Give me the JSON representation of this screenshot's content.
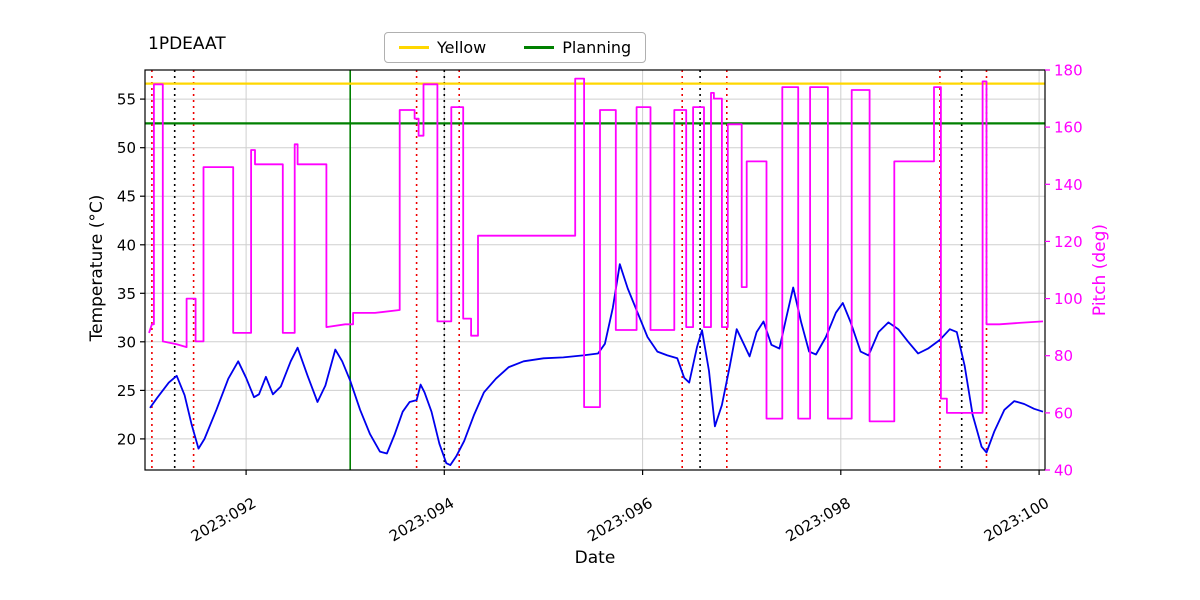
{
  "title": "1PDEAAT",
  "legend": {
    "items": [
      {
        "label": "Yellow",
        "color": "#ffd700"
      },
      {
        "label": "Planning",
        "color": "#008000"
      }
    ]
  },
  "axes": {
    "x_label": "Date",
    "y_left_label": "Temperature (°C)",
    "y_right_label": "Pitch (deg)",
    "x_range": [
      90.98,
      100.06
    ],
    "y_left_range": [
      16.8,
      58.0
    ],
    "y_right_range": [
      40,
      180
    ],
    "x_ticks": [
      {
        "value": 92,
        "label": "2023:092"
      },
      {
        "value": 94,
        "label": "2023:094"
      },
      {
        "value": 96,
        "label": "2023:096"
      },
      {
        "value": 98,
        "label": "2023:098"
      },
      {
        "value": 100,
        "label": "2023:100"
      }
    ],
    "y_left_ticks": [
      20,
      25,
      30,
      35,
      40,
      45,
      50,
      55
    ],
    "y_right_ticks": [
      40,
      60,
      80,
      100,
      120,
      140,
      160,
      180
    ],
    "grid": true
  },
  "chart_data": {
    "type": "line",
    "title": "1PDEAAT",
    "xlabel": "Date",
    "ylabel_left": "Temperature (°C)",
    "ylabel_right": "Pitch (deg)",
    "series": [
      {
        "name": "temperature",
        "color": "#0000ee",
        "axis": "left",
        "points": [
          [
            91.03,
            23.2
          ],
          [
            91.1,
            24.2
          ],
          [
            91.22,
            25.8
          ],
          [
            91.3,
            26.5
          ],
          [
            91.38,
            24.5
          ],
          [
            91.45,
            21.5
          ],
          [
            91.52,
            19.0
          ],
          [
            91.58,
            20.0
          ],
          [
            91.7,
            23.0
          ],
          [
            91.82,
            26.2
          ],
          [
            91.92,
            28.0
          ],
          [
            92.0,
            26.3
          ],
          [
            92.08,
            24.3
          ],
          [
            92.13,
            24.6
          ],
          [
            92.2,
            26.4
          ],
          [
            92.27,
            24.6
          ],
          [
            92.35,
            25.4
          ],
          [
            92.45,
            28.0
          ],
          [
            92.52,
            29.4
          ],
          [
            92.62,
            26.5
          ],
          [
            92.72,
            23.8
          ],
          [
            92.8,
            25.5
          ],
          [
            92.9,
            29.2
          ],
          [
            92.97,
            28.0
          ],
          [
            93.05,
            26.0
          ],
          [
            93.15,
            23.0
          ],
          [
            93.25,
            20.5
          ],
          [
            93.35,
            18.7
          ],
          [
            93.42,
            18.5
          ],
          [
            93.5,
            20.5
          ],
          [
            93.58,
            22.8
          ],
          [
            93.65,
            23.8
          ],
          [
            93.72,
            24.0
          ],
          [
            93.76,
            25.6
          ],
          [
            93.8,
            24.8
          ],
          [
            93.87,
            22.8
          ],
          [
            93.95,
            19.5
          ],
          [
            94.02,
            17.5
          ],
          [
            94.06,
            17.3
          ],
          [
            94.12,
            18.2
          ],
          [
            94.2,
            19.8
          ],
          [
            94.3,
            22.5
          ],
          [
            94.4,
            24.8
          ],
          [
            94.52,
            26.2
          ],
          [
            94.65,
            27.4
          ],
          [
            94.8,
            28.0
          ],
          [
            95.0,
            28.3
          ],
          [
            95.2,
            28.4
          ],
          [
            95.4,
            28.6
          ],
          [
            95.55,
            28.8
          ],
          [
            95.62,
            29.8
          ],
          [
            95.7,
            33.5
          ],
          [
            95.77,
            38.0
          ],
          [
            95.85,
            35.5
          ],
          [
            95.95,
            33.0
          ],
          [
            96.05,
            30.5
          ],
          [
            96.15,
            29.0
          ],
          [
            96.25,
            28.6
          ],
          [
            96.35,
            28.3
          ],
          [
            96.42,
            26.3
          ],
          [
            96.47,
            25.8
          ],
          [
            96.55,
            29.5
          ],
          [
            96.6,
            31.2
          ],
          [
            96.67,
            27.0
          ],
          [
            96.73,
            21.3
          ],
          [
            96.8,
            23.5
          ],
          [
            96.88,
            27.5
          ],
          [
            96.95,
            31.3
          ],
          [
            97.02,
            29.8
          ],
          [
            97.08,
            28.5
          ],
          [
            97.15,
            31.0
          ],
          [
            97.22,
            32.1
          ],
          [
            97.3,
            29.7
          ],
          [
            97.38,
            29.3
          ],
          [
            97.45,
            32.5
          ],
          [
            97.52,
            35.6
          ],
          [
            97.6,
            32.0
          ],
          [
            97.68,
            29.0
          ],
          [
            97.75,
            28.7
          ],
          [
            97.85,
            30.5
          ],
          [
            97.95,
            33.0
          ],
          [
            98.02,
            34.0
          ],
          [
            98.1,
            32.0
          ],
          [
            98.2,
            29.0
          ],
          [
            98.28,
            28.6
          ],
          [
            98.38,
            31.0
          ],
          [
            98.48,
            32.0
          ],
          [
            98.58,
            31.3
          ],
          [
            98.68,
            30.0
          ],
          [
            98.78,
            28.8
          ],
          [
            98.88,
            29.3
          ],
          [
            99.0,
            30.2
          ],
          [
            99.1,
            31.3
          ],
          [
            99.17,
            31.0
          ],
          [
            99.25,
            27.5
          ],
          [
            99.33,
            22.5
          ],
          [
            99.42,
            19.2
          ],
          [
            99.47,
            18.6
          ],
          [
            99.55,
            20.8
          ],
          [
            99.65,
            23.0
          ],
          [
            99.75,
            23.9
          ],
          [
            99.85,
            23.6
          ],
          [
            99.95,
            23.1
          ],
          [
            100.04,
            22.8
          ]
        ]
      },
      {
        "name": "pitch",
        "color": "#ff00ff",
        "axis": "right",
        "points": [
          [
            91.02,
            88
          ],
          [
            91.05,
            91
          ],
          [
            91.07,
            91
          ],
          [
            91.07,
            175
          ],
          [
            91.16,
            175
          ],
          [
            91.16,
            85
          ],
          [
            91.3,
            84
          ],
          [
            91.4,
            83
          ],
          [
            91.4,
            100
          ],
          [
            91.49,
            100
          ],
          [
            91.49,
            85
          ],
          [
            91.57,
            85
          ],
          [
            91.57,
            146
          ],
          [
            91.87,
            146
          ],
          [
            91.87,
            88
          ],
          [
            92.05,
            88
          ],
          [
            92.05,
            152
          ],
          [
            92.09,
            152
          ],
          [
            92.09,
            147
          ],
          [
            92.37,
            147
          ],
          [
            92.37,
            88
          ],
          [
            92.49,
            88
          ],
          [
            92.49,
            154
          ],
          [
            92.52,
            154
          ],
          [
            92.52,
            147
          ],
          [
            92.81,
            147
          ],
          [
            92.81,
            90
          ],
          [
            93.0,
            91
          ],
          [
            93.08,
            91
          ],
          [
            93.08,
            95
          ],
          [
            93.3,
            95
          ],
          [
            93.55,
            96
          ],
          [
            93.55,
            166
          ],
          [
            93.7,
            166
          ],
          [
            93.7,
            163
          ],
          [
            93.74,
            163
          ],
          [
            93.74,
            157
          ],
          [
            93.79,
            157
          ],
          [
            93.79,
            175
          ],
          [
            93.93,
            175
          ],
          [
            93.93,
            92
          ],
          [
            94.07,
            92
          ],
          [
            94.07,
            167
          ],
          [
            94.19,
            167
          ],
          [
            94.19,
            93
          ],
          [
            94.27,
            93
          ],
          [
            94.27,
            87
          ],
          [
            94.34,
            87
          ],
          [
            94.34,
            122
          ],
          [
            95.32,
            122
          ],
          [
            95.32,
            177
          ],
          [
            95.41,
            177
          ],
          [
            95.41,
            62
          ],
          [
            95.57,
            62
          ],
          [
            95.57,
            166
          ],
          [
            95.73,
            166
          ],
          [
            95.73,
            89
          ],
          [
            95.94,
            89
          ],
          [
            95.94,
            167
          ],
          [
            96.08,
            167
          ],
          [
            96.08,
            89
          ],
          [
            96.32,
            89
          ],
          [
            96.32,
            166
          ],
          [
            96.44,
            166
          ],
          [
            96.44,
            90
          ],
          [
            96.51,
            90
          ],
          [
            96.51,
            167
          ],
          [
            96.62,
            167
          ],
          [
            96.62,
            90
          ],
          [
            96.69,
            90
          ],
          [
            96.69,
            172
          ],
          [
            96.72,
            172
          ],
          [
            96.72,
            170
          ],
          [
            96.8,
            170
          ],
          [
            96.8,
            90
          ],
          [
            96.86,
            90
          ],
          [
            96.86,
            161
          ],
          [
            97.0,
            161
          ],
          [
            97.0,
            104
          ],
          [
            97.05,
            104
          ],
          [
            97.05,
            148
          ],
          [
            97.25,
            148
          ],
          [
            97.25,
            58
          ],
          [
            97.41,
            58
          ],
          [
            97.41,
            174
          ],
          [
            97.57,
            174
          ],
          [
            97.57,
            58
          ],
          [
            97.69,
            58
          ],
          [
            97.69,
            174
          ],
          [
            97.87,
            174
          ],
          [
            97.87,
            58
          ],
          [
            98.11,
            58
          ],
          [
            98.11,
            173
          ],
          [
            98.29,
            173
          ],
          [
            98.29,
            57
          ],
          [
            98.54,
            57
          ],
          [
            98.54,
            148
          ],
          [
            98.94,
            148
          ],
          [
            98.94,
            174
          ],
          [
            99.01,
            174
          ],
          [
            99.01,
            65
          ],
          [
            99.07,
            65
          ],
          [
            99.07,
            60
          ],
          [
            99.43,
            60
          ],
          [
            99.43,
            176
          ],
          [
            99.47,
            176
          ],
          [
            99.47,
            91
          ],
          [
            99.6,
            91
          ],
          [
            99.8,
            91.5
          ],
          [
            100.04,
            92
          ]
        ]
      }
    ],
    "hlines": [
      {
        "name": "yellow-limit-line",
        "label": "Yellow",
        "y": 56.6,
        "axis": "left",
        "color": "#ffd700",
        "style": "solid"
      },
      {
        "name": "planning-limit-line",
        "label": "Planning",
        "y": 52.5,
        "axis": "left",
        "color": "#008000",
        "style": "solid"
      }
    ],
    "vlines": [
      {
        "name": "green-vline",
        "x": 93.05,
        "color": "#008000",
        "style": "solid"
      },
      {
        "name": "red-dotted-vline",
        "x": 91.05,
        "color": "#ee0000",
        "style": "dotted"
      },
      {
        "name": "red-dotted-vline",
        "x": 91.47,
        "color": "#ee0000",
        "style": "dotted"
      },
      {
        "name": "red-dotted-vline",
        "x": 93.72,
        "color": "#ee0000",
        "style": "dotted"
      },
      {
        "name": "red-dotted-vline",
        "x": 94.15,
        "color": "#ee0000",
        "style": "dotted"
      },
      {
        "name": "red-dotted-vline",
        "x": 96.4,
        "color": "#ee0000",
        "style": "dotted"
      },
      {
        "name": "red-dotted-vline",
        "x": 96.85,
        "color": "#ee0000",
        "style": "dotted"
      },
      {
        "name": "red-dotted-vline",
        "x": 99.0,
        "color": "#ee0000",
        "style": "dotted"
      },
      {
        "name": "red-dotted-vline",
        "x": 99.47,
        "color": "#ee0000",
        "style": "dotted"
      },
      {
        "name": "black-dotted-vline",
        "x": 91.28,
        "color": "#000000",
        "style": "dotted"
      },
      {
        "name": "black-dotted-vline",
        "x": 94.0,
        "color": "#000000",
        "style": "dotted"
      },
      {
        "name": "black-dotted-vline",
        "x": 96.58,
        "color": "#000000",
        "style": "dotted"
      },
      {
        "name": "black-dotted-vline",
        "x": 99.22,
        "color": "#000000",
        "style": "dotted"
      }
    ],
    "colors": {
      "temperature": "#0000ee",
      "pitch": "#ff00ff",
      "yellow_limit": "#ffd700",
      "planning_limit": "#008000",
      "grid": "#cfcfcf"
    }
  }
}
